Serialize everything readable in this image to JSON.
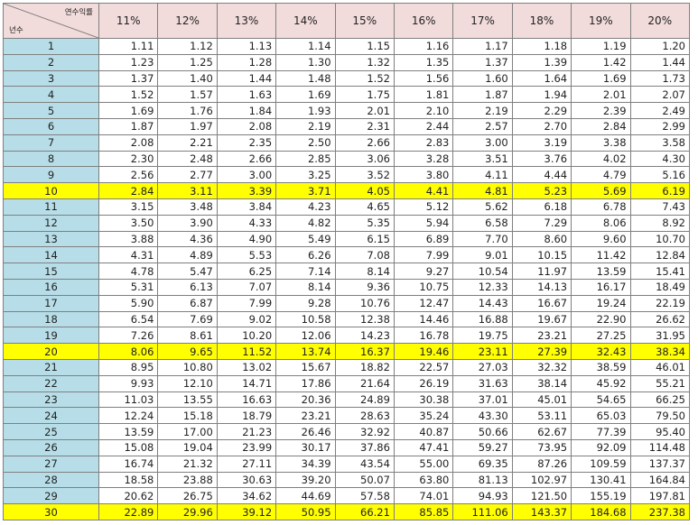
{
  "header": {
    "corner_top": "연수익률",
    "corner_bottom": "년수",
    "rates": [
      "11%",
      "12%",
      "13%",
      "14%",
      "15%",
      "16%",
      "17%",
      "18%",
      "19%",
      "20%"
    ]
  },
  "colors": {
    "header_bg": "#f2dcdb",
    "year_column_bg": "#b7dee8",
    "highlight_row_bg": "#ffff00"
  },
  "highlighted_years": [
    "10",
    "20",
    "30"
  ],
  "rows": [
    {
      "year": "1",
      "values": [
        "1.11",
        "1.12",
        "1.13",
        "1.14",
        "1.15",
        "1.16",
        "1.17",
        "1.18",
        "1.19",
        "1.20"
      ]
    },
    {
      "year": "2",
      "values": [
        "1.23",
        "1.25",
        "1.28",
        "1.30",
        "1.32",
        "1.35",
        "1.37",
        "1.39",
        "1.42",
        "1.44"
      ]
    },
    {
      "year": "3",
      "values": [
        "1.37",
        "1.40",
        "1.44",
        "1.48",
        "1.52",
        "1.56",
        "1.60",
        "1.64",
        "1.69",
        "1.73"
      ]
    },
    {
      "year": "4",
      "values": [
        "1.52",
        "1.57",
        "1.63",
        "1.69",
        "1.75",
        "1.81",
        "1.87",
        "1.94",
        "2.01",
        "2.07"
      ]
    },
    {
      "year": "5",
      "values": [
        "1.69",
        "1.76",
        "1.84",
        "1.93",
        "2.01",
        "2.10",
        "2.19",
        "2.29",
        "2.39",
        "2.49"
      ]
    },
    {
      "year": "6",
      "values": [
        "1.87",
        "1.97",
        "2.08",
        "2.19",
        "2.31",
        "2.44",
        "2.57",
        "2.70",
        "2.84",
        "2.99"
      ]
    },
    {
      "year": "7",
      "values": [
        "2.08",
        "2.21",
        "2.35",
        "2.50",
        "2.66",
        "2.83",
        "3.00",
        "3.19",
        "3.38",
        "3.58"
      ]
    },
    {
      "year": "8",
      "values": [
        "2.30",
        "2.48",
        "2.66",
        "2.85",
        "3.06",
        "3.28",
        "3.51",
        "3.76",
        "4.02",
        "4.30"
      ]
    },
    {
      "year": "9",
      "values": [
        "2.56",
        "2.77",
        "3.00",
        "3.25",
        "3.52",
        "3.80",
        "4.11",
        "4.44",
        "4.79",
        "5.16"
      ]
    },
    {
      "year": "10",
      "values": [
        "2.84",
        "3.11",
        "3.39",
        "3.71",
        "4.05",
        "4.41",
        "4.81",
        "5.23",
        "5.69",
        "6.19"
      ]
    },
    {
      "year": "11",
      "values": [
        "3.15",
        "3.48",
        "3.84",
        "4.23",
        "4.65",
        "5.12",
        "5.62",
        "6.18",
        "6.78",
        "7.43"
      ]
    },
    {
      "year": "12",
      "values": [
        "3.50",
        "3.90",
        "4.33",
        "4.82",
        "5.35",
        "5.94",
        "6.58",
        "7.29",
        "8.06",
        "8.92"
      ]
    },
    {
      "year": "13",
      "values": [
        "3.88",
        "4.36",
        "4.90",
        "5.49",
        "6.15",
        "6.89",
        "7.70",
        "8.60",
        "9.60",
        "10.70"
      ]
    },
    {
      "year": "14",
      "values": [
        "4.31",
        "4.89",
        "5.53",
        "6.26",
        "7.08",
        "7.99",
        "9.01",
        "10.15",
        "11.42",
        "12.84"
      ]
    },
    {
      "year": "15",
      "values": [
        "4.78",
        "5.47",
        "6.25",
        "7.14",
        "8.14",
        "9.27",
        "10.54",
        "11.97",
        "13.59",
        "15.41"
      ]
    },
    {
      "year": "16",
      "values": [
        "5.31",
        "6.13",
        "7.07",
        "8.14",
        "9.36",
        "10.75",
        "12.33",
        "14.13",
        "16.17",
        "18.49"
      ]
    },
    {
      "year": "17",
      "values": [
        "5.90",
        "6.87",
        "7.99",
        "9.28",
        "10.76",
        "12.47",
        "14.43",
        "16.67",
        "19.24",
        "22.19"
      ]
    },
    {
      "year": "18",
      "values": [
        "6.54",
        "7.69",
        "9.02",
        "10.58",
        "12.38",
        "14.46",
        "16.88",
        "19.67",
        "22.90",
        "26.62"
      ]
    },
    {
      "year": "19",
      "values": [
        "7.26",
        "8.61",
        "10.20",
        "12.06",
        "14.23",
        "16.78",
        "19.75",
        "23.21",
        "27.25",
        "31.95"
      ]
    },
    {
      "year": "20",
      "values": [
        "8.06",
        "9.65",
        "11.52",
        "13.74",
        "16.37",
        "19.46",
        "23.11",
        "27.39",
        "32.43",
        "38.34"
      ]
    },
    {
      "year": "21",
      "values": [
        "8.95",
        "10.80",
        "13.02",
        "15.67",
        "18.82",
        "22.57",
        "27.03",
        "32.32",
        "38.59",
        "46.01"
      ]
    },
    {
      "year": "22",
      "values": [
        "9.93",
        "12.10",
        "14.71",
        "17.86",
        "21.64",
        "26.19",
        "31.63",
        "38.14",
        "45.92",
        "55.21"
      ]
    },
    {
      "year": "23",
      "values": [
        "11.03",
        "13.55",
        "16.63",
        "20.36",
        "24.89",
        "30.38",
        "37.01",
        "45.01",
        "54.65",
        "66.25"
      ]
    },
    {
      "year": "24",
      "values": [
        "12.24",
        "15.18",
        "18.79",
        "23.21",
        "28.63",
        "35.24",
        "43.30",
        "53.11",
        "65.03",
        "79.50"
      ]
    },
    {
      "year": "25",
      "values": [
        "13.59",
        "17.00",
        "21.23",
        "26.46",
        "32.92",
        "40.87",
        "50.66",
        "62.67",
        "77.39",
        "95.40"
      ]
    },
    {
      "year": "26",
      "values": [
        "15.08",
        "19.04",
        "23.99",
        "30.17",
        "37.86",
        "47.41",
        "59.27",
        "73.95",
        "92.09",
        "114.48"
      ]
    },
    {
      "year": "27",
      "values": [
        "16.74",
        "21.32",
        "27.11",
        "34.39",
        "43.54",
        "55.00",
        "69.35",
        "87.26",
        "109.59",
        "137.37"
      ]
    },
    {
      "year": "28",
      "values": [
        "18.58",
        "23.88",
        "30.63",
        "39.20",
        "50.07",
        "63.80",
        "81.13",
        "102.97",
        "130.41",
        "164.84"
      ]
    },
    {
      "year": "29",
      "values": [
        "20.62",
        "26.75",
        "34.62",
        "44.69",
        "57.58",
        "74.01",
        "94.93",
        "121.50",
        "155.19",
        "197.81"
      ]
    },
    {
      "year": "30",
      "values": [
        "22.89",
        "29.96",
        "39.12",
        "50.95",
        "66.21",
        "85.85",
        "111.06",
        "143.37",
        "184.68",
        "237.38"
      ]
    }
  ]
}
